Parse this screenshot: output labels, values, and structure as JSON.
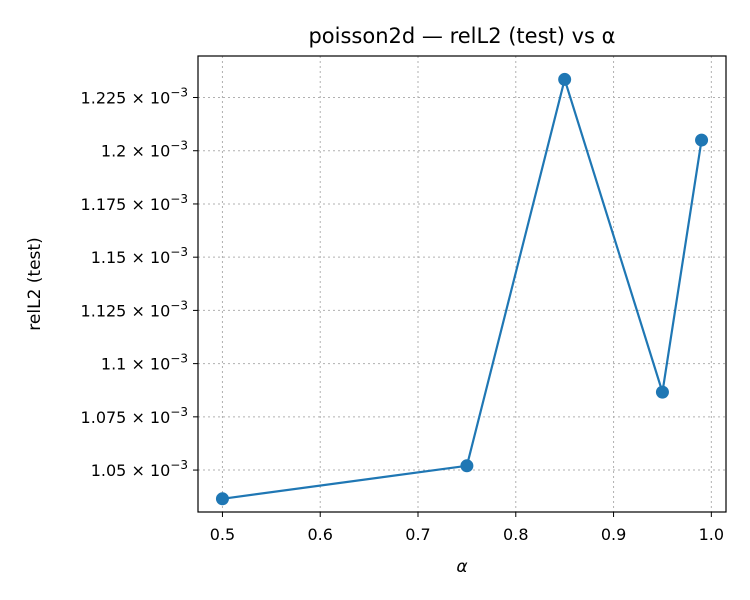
{
  "chart_data": {
    "type": "line",
    "title": "poisson2d — relL2 (test) vs α",
    "xlabel": "α",
    "ylabel": "relL2 (test)",
    "xlim": [
      0.475,
      1.015
    ],
    "ylim": [
      0.0010303,
      0.0012445
    ],
    "x_ticks": [
      0.5,
      0.6,
      0.7,
      0.8,
      0.9,
      1.0
    ],
    "x_tick_labels": [
      "0.5",
      "0.6",
      "0.7",
      "0.8",
      "0.9",
      "1.0"
    ],
    "y_ticks": [
      0.00105,
      0.001075,
      0.0011,
      0.001125,
      0.00115,
      0.001175,
      0.0012,
      0.001225
    ],
    "y_tick_mantissas": [
      "1.05",
      "1.075",
      "1.1",
      "1.125",
      "1.15",
      "1.175",
      "1.2",
      "1.225"
    ],
    "y_tick_suffix": "× 10",
    "y_tick_exponent": "−3",
    "grid": true,
    "series": [
      {
        "color": "#1f77b4",
        "x": [
          0.5,
          0.75,
          0.85,
          0.95,
          0.99
        ],
        "values": [
          0.0010365,
          0.001052,
          0.0012335,
          0.0010866,
          0.001205
        ]
      }
    ]
  }
}
